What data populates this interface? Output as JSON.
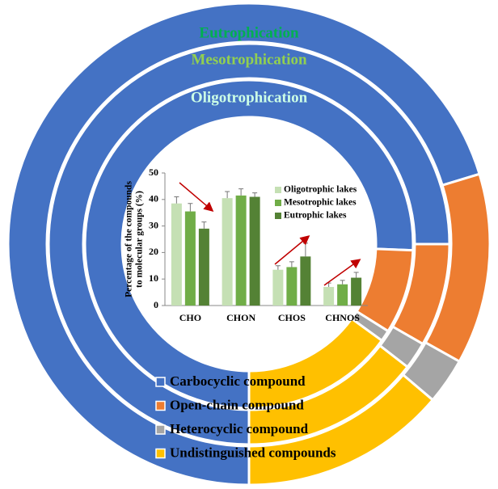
{
  "chart_data": [
    {
      "type": "donut",
      "categories": [
        "Carbocyclic compound",
        "Open-chain compound",
        "Heterocyclic compound",
        "Undistinguished compounds"
      ],
      "colors": [
        "#4472c4",
        "#ed7d31",
        "#a5a5a5",
        "#ffc000"
      ],
      "series": [
        {
          "name": "Eutrophication",
          "color": "#00b050",
          "values": [
            70.3,
            12.8,
            3.1,
            13.8
          ]
        },
        {
          "name": "Mesotrophication",
          "color": "#92d050",
          "values": [
            75.0,
            8.3,
            2.2,
            14.5
          ]
        },
        {
          "name": "Oligotrophication",
          "color": "#ccffe6",
          "values": [
            75.6,
            8.3,
            1.1,
            15.0
          ]
        }
      ]
    },
    {
      "type": "bar",
      "ylabel": [
        "Percentage of the compounds",
        "to molecular groups (%)"
      ],
      "categories": [
        "CHO",
        "CHON",
        "CHOS",
        "CHNOS"
      ],
      "ylim": [
        0,
        50
      ],
      "yticks": [
        0,
        10,
        20,
        30,
        40,
        50
      ],
      "series": [
        {
          "name": "Oligotrophic lakes",
          "color": "#c5e0b4",
          "values": [
            38.5,
            40.5,
            13.5,
            7
          ],
          "errors": [
            2.5,
            2.5,
            1.5,
            1.5
          ]
        },
        {
          "name": "Mesotrophic lakes",
          "color": "#70ad47",
          "values": [
            35.5,
            41.5,
            14.5,
            8
          ],
          "errors": [
            3,
            2.5,
            2,
            1.5
          ]
        },
        {
          "name": "Eutrophic lakes",
          "color": "#548235",
          "values": [
            29,
            41,
            18.5,
            10.5
          ],
          "errors": [
            2.5,
            1.5,
            5,
            2
          ]
        }
      ]
    }
  ]
}
